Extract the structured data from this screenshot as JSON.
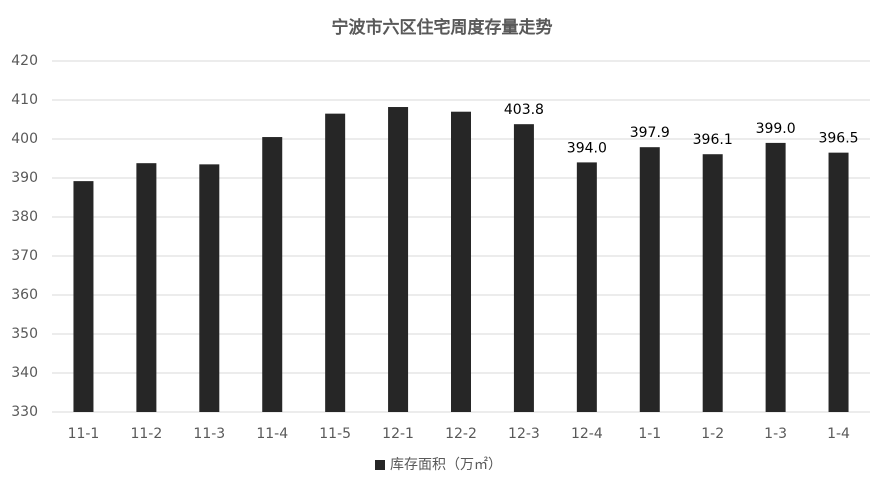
{
  "chart_data": {
    "type": "bar",
    "title": "宁波市六区住宅周度存量走势",
    "categories": [
      "11-1",
      "11-2",
      "11-3",
      "11-4",
      "11-5",
      "12-1",
      "12-2",
      "12-3",
      "12-4",
      "1-1",
      "1-2",
      "1-3",
      "1-4"
    ],
    "series": [
      {
        "name": "库存面积（万㎡）",
        "color": "#262626",
        "values": [
          389.2,
          393.8,
          393.5,
          400.5,
          406.5,
          408.2,
          407.0,
          403.8,
          394.0,
          397.9,
          396.1,
          399.0,
          396.5
        ],
        "value_labels": [
          null,
          null,
          null,
          null,
          null,
          null,
          null,
          "403.8",
          "394.0",
          "397.9",
          "396.1",
          "399.0",
          "396.5"
        ]
      }
    ],
    "ylim": [
      330,
      420
    ],
    "yticks": [
      330,
      340,
      350,
      360,
      370,
      380,
      390,
      400,
      410,
      420
    ],
    "grid": true,
    "legend": "bottom"
  }
}
